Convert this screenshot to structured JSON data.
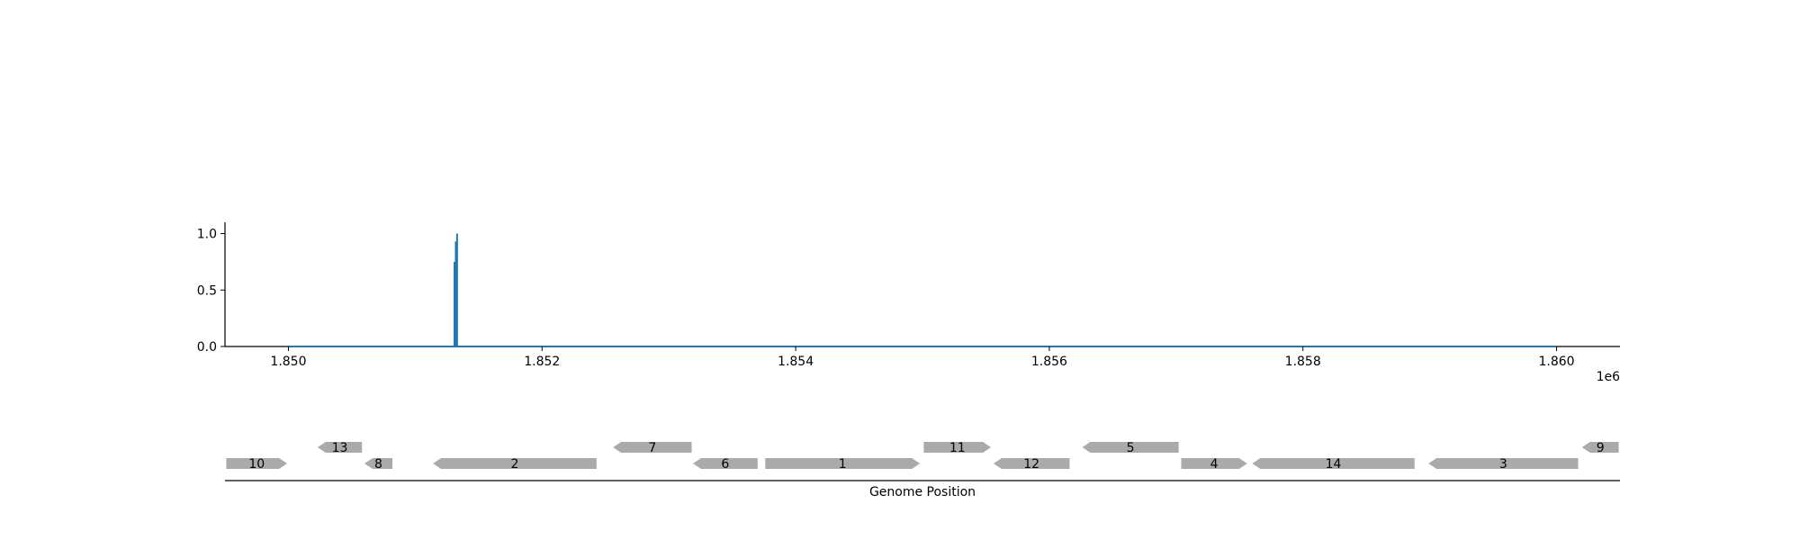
{
  "chart_data": [
    {
      "type": "bar",
      "title": "",
      "xlabel": "",
      "ylabel": "",
      "x_offset_label": "1e6",
      "xlim": [
        1849500,
        1860500
      ],
      "ylim": [
        0,
        1.1
      ],
      "x_ticks": [
        {
          "value": 1850000,
          "label": "1.850"
        },
        {
          "value": 1852000,
          "label": "1.852"
        },
        {
          "value": 1854000,
          "label": "1.854"
        },
        {
          "value": 1856000,
          "label": "1.856"
        },
        {
          "value": 1858000,
          "label": "1.858"
        },
        {
          "value": 1860000,
          "label": "1.860"
        }
      ],
      "y_ticks": [
        {
          "value": 0.0,
          "label": "0.0"
        },
        {
          "value": 0.5,
          "label": "0.5"
        },
        {
          "value": 1.0,
          "label": "1.0"
        }
      ],
      "grid": false,
      "baseline": {
        "x_start": 1850000,
        "x_end": 1860000,
        "value": 0.0
      },
      "bars": [
        {
          "x": 1851310,
          "value": 0.75
        },
        {
          "x": 1851320,
          "value": 0.93
        },
        {
          "x": 1851330,
          "value": 1.0
        }
      ],
      "color": "#1f77b4"
    },
    {
      "type": "gene-map",
      "xlabel": "Genome Position",
      "xlim": [
        1849500,
        1860500
      ],
      "color": "#aaaaaa",
      "genes": [
        {
          "label": "10",
          "start": 1849510,
          "end": 1849990,
          "strand": "+",
          "row": 0
        },
        {
          "label": "13",
          "start": 1850230,
          "end": 1850580,
          "strand": "-",
          "row": 1
        },
        {
          "label": "8",
          "start": 1850600,
          "end": 1850820,
          "strand": "-",
          "row": 0
        },
        {
          "label": "2",
          "start": 1851140,
          "end": 1852430,
          "strand": "-",
          "row": 0
        },
        {
          "label": "7",
          "start": 1852560,
          "end": 1853180,
          "strand": "-",
          "row": 1
        },
        {
          "label": "6",
          "start": 1853190,
          "end": 1853700,
          "strand": "-",
          "row": 0
        },
        {
          "label": "1",
          "start": 1853760,
          "end": 1854980,
          "strand": "+",
          "row": 0
        },
        {
          "label": "11",
          "start": 1855010,
          "end": 1855540,
          "strand": "+",
          "row": 1
        },
        {
          "label": "12",
          "start": 1855560,
          "end": 1856160,
          "strand": "-",
          "row": 0
        },
        {
          "label": "5",
          "start": 1856260,
          "end": 1857020,
          "strand": "-",
          "row": 1
        },
        {
          "label": "4",
          "start": 1857040,
          "end": 1857560,
          "strand": "+",
          "row": 0
        },
        {
          "label": "14",
          "start": 1857600,
          "end": 1858880,
          "strand": "-",
          "row": 0
        },
        {
          "label": "3",
          "start": 1858990,
          "end": 1860170,
          "strand": "-",
          "row": 0
        },
        {
          "label": "9",
          "start": 1860200,
          "end": 1860490,
          "strand": "-",
          "row": 1
        }
      ]
    }
  ]
}
